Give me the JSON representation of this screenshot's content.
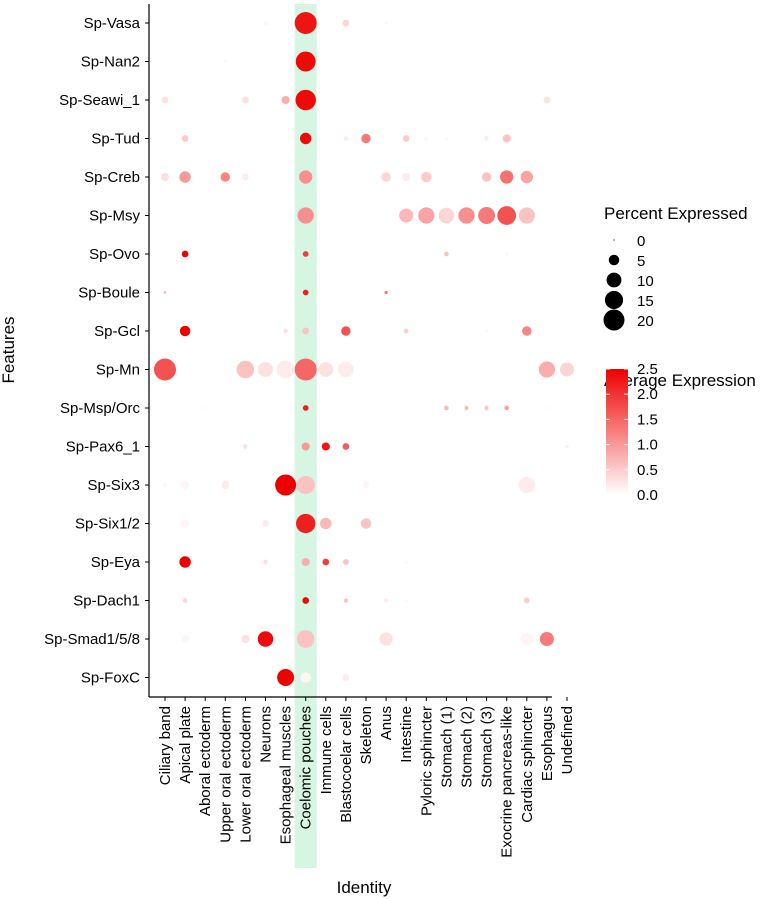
{
  "chart_data": {
    "type": "dotplot",
    "xlabel": "Identity",
    "ylabel": "Features",
    "highlight_column": "Coelomic pouches",
    "highlight_color": "#d6f5e3",
    "color_scale": {
      "low": "#ffffff",
      "high": "#ee0000",
      "min": 0.0,
      "max": 2.5
    },
    "categories": [
      "Ciliary band",
      "Apical plate",
      "Aboral ectoderm",
      "Upper oral ectoderm",
      "Lower oral ectoderm",
      "Neurons",
      "Esophageal muscles",
      "Coelomic pouches",
      "Immune cells",
      "Blastocoelar cells",
      "Skeleton",
      "Anus",
      "Intestine",
      "Pyloric sphincter",
      "Stomach (1)",
      "Stomach (2)",
      "Stomach (3)",
      "Exocrine pancreas-like",
      "Cardiac sphincter",
      "Esophagus",
      "Undefined"
    ],
    "features": [
      "Sp-Vasa",
      "Sp-Nan2",
      "Sp-Seawi_1",
      "Sp-Tud",
      "Sp-Creb",
      "Sp-Msy",
      "Sp-Ovo",
      "Sp-Boule",
      "Sp-Gcl",
      "Sp-Mn",
      "Sp-Msp/Orc",
      "Sp-Pax6_1",
      "Sp-Six3",
      "Sp-Six1/2",
      "Sp-Eya",
      "Sp-Dach1",
      "Sp-Smad1/5/8",
      "Sp-FoxC"
    ],
    "points": [
      {
        "feature": "Sp-Vasa",
        "identity": "Neurons",
        "pct": 1,
        "avg": 0.1
      },
      {
        "feature": "Sp-Vasa",
        "identity": "Coelomic pouches",
        "pct": 22,
        "avg": 2.3
      },
      {
        "feature": "Sp-Vasa",
        "identity": "Blastocoelar cells",
        "pct": 2,
        "avg": 0.4
      },
      {
        "feature": "Sp-Vasa",
        "identity": "Anus",
        "pct": 0.5,
        "avg": 0.1
      },
      {
        "feature": "Sp-Nan2",
        "identity": "Upper oral ectoderm",
        "pct": 0.5,
        "avg": 0.1
      },
      {
        "feature": "Sp-Nan2",
        "identity": "Coelomic pouches",
        "pct": 18,
        "avg": 2.4
      },
      {
        "feature": "Sp-Seawi_1",
        "identity": "Ciliary band",
        "pct": 2,
        "avg": 0.3
      },
      {
        "feature": "Sp-Seawi_1",
        "identity": "Lower oral ectoderm",
        "pct": 2,
        "avg": 0.3
      },
      {
        "feature": "Sp-Seawi_1",
        "identity": "Esophageal muscles",
        "pct": 3,
        "avg": 0.8
      },
      {
        "feature": "Sp-Seawi_1",
        "identity": "Coelomic pouches",
        "pct": 19,
        "avg": 2.4
      },
      {
        "feature": "Sp-Seawi_1",
        "identity": "Esophagus",
        "pct": 2,
        "avg": 0.3
      },
      {
        "feature": "Sp-Tud",
        "identity": "Apical plate",
        "pct": 2,
        "avg": 0.5
      },
      {
        "feature": "Sp-Tud",
        "identity": "Coelomic pouches",
        "pct": 6,
        "avg": 2.4
      },
      {
        "feature": "Sp-Tud",
        "identity": "Blastocoelar cells",
        "pct": 1,
        "avg": 0.2
      },
      {
        "feature": "Sp-Tud",
        "identity": "Skeleton",
        "pct": 4,
        "avg": 1.3
      },
      {
        "feature": "Sp-Tud",
        "identity": "Intestine",
        "pct": 2,
        "avg": 0.5
      },
      {
        "feature": "Sp-Tud",
        "identity": "Pyloric sphincter",
        "pct": 1,
        "avg": 0.1
      },
      {
        "feature": "Sp-Tud",
        "identity": "Stomach (1)",
        "pct": 0.5,
        "avg": 0.1
      },
      {
        "feature": "Sp-Tud",
        "identity": "Stomach (3)",
        "pct": 1,
        "avg": 0.2
      },
      {
        "feature": "Sp-Tud",
        "identity": "Exocrine pancreas-like",
        "pct": 3,
        "avg": 0.6
      },
      {
        "feature": "Sp-Creb",
        "identity": "Ciliary band",
        "pct": 3,
        "avg": 0.3
      },
      {
        "feature": "Sp-Creb",
        "identity": "Apical plate",
        "pct": 6,
        "avg": 1.0
      },
      {
        "feature": "Sp-Creb",
        "identity": "Upper oral ectoderm",
        "pct": 4,
        "avg": 1.2
      },
      {
        "feature": "Sp-Creb",
        "identity": "Lower oral ectoderm",
        "pct": 2,
        "avg": 0.2
      },
      {
        "feature": "Sp-Creb",
        "identity": "Coelomic pouches",
        "pct": 8,
        "avg": 1.1
      },
      {
        "feature": "Sp-Creb",
        "identity": "Anus",
        "pct": 4,
        "avg": 0.4
      },
      {
        "feature": "Sp-Creb",
        "identity": "Intestine",
        "pct": 3,
        "avg": 0.2
      },
      {
        "feature": "Sp-Creb",
        "identity": "Pyloric sphincter",
        "pct": 5,
        "avg": 0.5
      },
      {
        "feature": "Sp-Creb",
        "identity": "Stomach (3)",
        "pct": 4,
        "avg": 0.6
      },
      {
        "feature": "Sp-Creb",
        "identity": "Exocrine pancreas-like",
        "pct": 8,
        "avg": 1.4
      },
      {
        "feature": "Sp-Creb",
        "identity": "Cardiac sphincter",
        "pct": 7,
        "avg": 0.9
      },
      {
        "feature": "Sp-Msy",
        "identity": "Coelomic pouches",
        "pct": 12,
        "avg": 1.1
      },
      {
        "feature": "Sp-Msy",
        "identity": "Intestine",
        "pct": 9,
        "avg": 0.7
      },
      {
        "feature": "Sp-Msy",
        "identity": "Pyloric sphincter",
        "pct": 12,
        "avg": 0.9
      },
      {
        "feature": "Sp-Msy",
        "identity": "Stomach (1)",
        "pct": 11,
        "avg": 0.4
      },
      {
        "feature": "Sp-Msy",
        "identity": "Stomach (2)",
        "pct": 12,
        "avg": 1.1
      },
      {
        "feature": "Sp-Msy",
        "identity": "Stomach (3)",
        "pct": 13,
        "avg": 1.3
      },
      {
        "feature": "Sp-Msy",
        "identity": "Exocrine pancreas-like",
        "pct": 16,
        "avg": 1.7
      },
      {
        "feature": "Sp-Msy",
        "identity": "Cardiac sphincter",
        "pct": 12,
        "avg": 0.6
      },
      {
        "feature": "Sp-Ovo",
        "identity": "Apical plate",
        "pct": 2,
        "avg": 2.5
      },
      {
        "feature": "Sp-Ovo",
        "identity": "Coelomic pouches",
        "pct": 1.5,
        "avg": 1.9
      },
      {
        "feature": "Sp-Ovo",
        "identity": "Stomach (1)",
        "pct": 1,
        "avg": 0.6
      },
      {
        "feature": "Sp-Ovo",
        "identity": "Exocrine pancreas-like",
        "pct": 0.3,
        "avg": 0.1
      },
      {
        "feature": "Sp-Boule",
        "identity": "Ciliary band",
        "pct": 0.3,
        "avg": 0.8
      },
      {
        "feature": "Sp-Boule",
        "identity": "Coelomic pouches",
        "pct": 1.5,
        "avg": 2.2
      },
      {
        "feature": "Sp-Boule",
        "identity": "Anus",
        "pct": 0.5,
        "avg": 1.3
      },
      {
        "feature": "Sp-Gcl",
        "identity": "Apical plate",
        "pct": 5,
        "avg": 2.5
      },
      {
        "feature": "Sp-Gcl",
        "identity": "Esophageal muscles",
        "pct": 1,
        "avg": 0.3
      },
      {
        "feature": "Sp-Gcl",
        "identity": "Coelomic pouches",
        "pct": 2,
        "avg": 0.6
      },
      {
        "feature": "Sp-Gcl",
        "identity": "Blastocoelar cells",
        "pct": 4,
        "avg": 1.7
      },
      {
        "feature": "Sp-Gcl",
        "identity": "Intestine",
        "pct": 1,
        "avg": 0.5
      },
      {
        "feature": "Sp-Gcl",
        "identity": "Stomach (3)",
        "pct": 0.3,
        "avg": 0.1
      },
      {
        "feature": "Sp-Gcl",
        "identity": "Cardiac sphincter",
        "pct": 4,
        "avg": 1.2
      },
      {
        "feature": "Sp-Mn",
        "identity": "Ciliary band",
        "pct": 22,
        "avg": 1.7
      },
      {
        "feature": "Sp-Mn",
        "identity": "Lower oral ectoderm",
        "pct": 14,
        "avg": 0.6
      },
      {
        "feature": "Sp-Mn",
        "identity": "Neurons",
        "pct": 10,
        "avg": 0.3
      },
      {
        "feature": "Sp-Mn",
        "identity": "Esophageal muscles",
        "pct": 14,
        "avg": 0.2
      },
      {
        "feature": "Sp-Mn",
        "identity": "Coelomic pouches",
        "pct": 22,
        "avg": 1.5
      },
      {
        "feature": "Sp-Mn",
        "identity": "Immune cells",
        "pct": 10,
        "avg": 0.3
      },
      {
        "feature": "Sp-Mn",
        "identity": "Blastocoelar cells",
        "pct": 11,
        "avg": 0.2
      },
      {
        "feature": "Sp-Mn",
        "identity": "Esophagus",
        "pct": 12,
        "avg": 0.8
      },
      {
        "feature": "Sp-Mn",
        "identity": "Undefined",
        "pct": 9,
        "avg": 0.4
      },
      {
        "feature": "Sp-Msp/Orc",
        "identity": "Aboral ectoderm",
        "pct": 0.3,
        "avg": 0.1
      },
      {
        "feature": "Sp-Msp/Orc",
        "identity": "Coelomic pouches",
        "pct": 1.5,
        "avg": 2.2
      },
      {
        "feature": "Sp-Msp/Orc",
        "identity": "Stomach (1)",
        "pct": 1,
        "avg": 0.7
      },
      {
        "feature": "Sp-Msp/Orc",
        "identity": "Stomach (2)",
        "pct": 0.8,
        "avg": 0.7
      },
      {
        "feature": "Sp-Msp/Orc",
        "identity": "Stomach (3)",
        "pct": 0.8,
        "avg": 0.6
      },
      {
        "feature": "Sp-Msp/Orc",
        "identity": "Exocrine pancreas-like",
        "pct": 1,
        "avg": 0.9
      },
      {
        "feature": "Sp-Msp/Orc",
        "identity": "Esophagus",
        "pct": 0.3,
        "avg": 0.1
      },
      {
        "feature": "Sp-Pax6_1",
        "identity": "Lower oral ectoderm",
        "pct": 1,
        "avg": 0.3
      },
      {
        "feature": "Sp-Pax6_1",
        "identity": "Coelomic pouches",
        "pct": 3,
        "avg": 1.0
      },
      {
        "feature": "Sp-Pax6_1",
        "identity": "Immune cells",
        "pct": 3,
        "avg": 2.3
      },
      {
        "feature": "Sp-Pax6_1",
        "identity": "Blastocoelar cells",
        "pct": 2,
        "avg": 1.6
      },
      {
        "feature": "Sp-Pax6_1",
        "identity": "Undefined",
        "pct": 0.5,
        "avg": 0.2
      },
      {
        "feature": "Sp-Six3",
        "identity": "Ciliary band",
        "pct": 1,
        "avg": 0.1
      },
      {
        "feature": "Sp-Six3",
        "identity": "Apical plate",
        "pct": 3,
        "avg": 0.1
      },
      {
        "feature": "Sp-Six3",
        "identity": "Upper oral ectoderm",
        "pct": 3,
        "avg": 0.2
      },
      {
        "feature": "Sp-Six3",
        "identity": "Esophageal muscles",
        "pct": 20,
        "avg": 2.5
      },
      {
        "feature": "Sp-Six3",
        "identity": "Coelomic pouches",
        "pct": 15,
        "avg": 0.6
      },
      {
        "feature": "Sp-Six3",
        "identity": "Skeleton",
        "pct": 2,
        "avg": 0.1
      },
      {
        "feature": "Sp-Six3",
        "identity": "Cardiac sphincter",
        "pct": 12,
        "avg": 0.2
      },
      {
        "feature": "Sp-Six1/2",
        "identity": "Apical plate",
        "pct": 3,
        "avg": 0.1
      },
      {
        "feature": "Sp-Six1/2",
        "identity": "Neurons",
        "pct": 2,
        "avg": 0.2
      },
      {
        "feature": "Sp-Six1/2",
        "identity": "Coelomic pouches",
        "pct": 17,
        "avg": 2.2
      },
      {
        "feature": "Sp-Six1/2",
        "identity": "Immune cells",
        "pct": 6,
        "avg": 0.7
      },
      {
        "feature": "Sp-Six1/2",
        "identity": "Skeleton",
        "pct": 5,
        "avg": 0.6
      },
      {
        "feature": "Sp-Eya",
        "identity": "Apical plate",
        "pct": 6,
        "avg": 2.5
      },
      {
        "feature": "Sp-Eya",
        "identity": "Neurons",
        "pct": 1,
        "avg": 0.3
      },
      {
        "feature": "Sp-Eya",
        "identity": "Coelomic pouches",
        "pct": 3,
        "avg": 0.8
      },
      {
        "feature": "Sp-Eya",
        "identity": "Immune cells",
        "pct": 2,
        "avg": 1.9
      },
      {
        "feature": "Sp-Eya",
        "identity": "Blastocoelar cells",
        "pct": 1.5,
        "avg": 0.6
      },
      {
        "feature": "Sp-Eya",
        "identity": "Intestine",
        "pct": 0.3,
        "avg": 0.1
      },
      {
        "feature": "Sp-Dach1",
        "identity": "Apical plate",
        "pct": 1,
        "avg": 0.4
      },
      {
        "feature": "Sp-Dach1",
        "identity": "Coelomic pouches",
        "pct": 2,
        "avg": 2.4
      },
      {
        "feature": "Sp-Dach1",
        "identity": "Blastocoelar cells",
        "pct": 0.8,
        "avg": 0.6
      },
      {
        "feature": "Sp-Dach1",
        "identity": "Anus",
        "pct": 0.8,
        "avg": 0.2
      },
      {
        "feature": "Sp-Dach1",
        "identity": "Intestine",
        "pct": 0.3,
        "avg": 0.1
      },
      {
        "feature": "Sp-Dach1",
        "identity": "Cardiac sphincter",
        "pct": 1.5,
        "avg": 0.5
      },
      {
        "feature": "Sp-Smad1/5/8",
        "identity": "Apical plate",
        "pct": 3,
        "avg": 0.1
      },
      {
        "feature": "Sp-Smad1/5/8",
        "identity": "Lower oral ectoderm",
        "pct": 3,
        "avg": 0.3
      },
      {
        "feature": "Sp-Smad1/5/8",
        "identity": "Neurons",
        "pct": 11,
        "avg": 2.4
      },
      {
        "feature": "Sp-Smad1/5/8",
        "identity": "Coelomic pouches",
        "pct": 14,
        "avg": 0.6
      },
      {
        "feature": "Sp-Smad1/5/8",
        "identity": "Anus",
        "pct": 8,
        "avg": 0.3
      },
      {
        "feature": "Sp-Smad1/5/8",
        "identity": "Cardiac sphincter",
        "pct": 7,
        "avg": 0.1
      },
      {
        "feature": "Sp-Smad1/5/8",
        "identity": "Esophagus",
        "pct": 9,
        "avg": 1.3
      },
      {
        "feature": "Sp-FoxC",
        "identity": "Esophageal muscles",
        "pct": 13,
        "avg": 2.5
      },
      {
        "feature": "Sp-FoxC",
        "identity": "Coelomic pouches",
        "pct": 5,
        "avg": 0.1
      },
      {
        "feature": "Sp-FoxC",
        "identity": "Blastocoelar cells",
        "pct": 2,
        "avg": 0.2
      }
    ],
    "size_legend": {
      "title": "Percent Expressed",
      "breaks": [
        0,
        5,
        10,
        15,
        20
      ],
      "labels": [
        "0",
        "5",
        "10",
        "15",
        "20"
      ]
    },
    "color_legend": {
      "title": "Average Expression",
      "breaks": [
        0.0,
        0.5,
        1.0,
        1.5,
        2.0,
        2.5
      ],
      "labels": [
        "0.0",
        "0.5",
        "1.0",
        "1.5",
        "2.0",
        "2.5"
      ]
    }
  }
}
